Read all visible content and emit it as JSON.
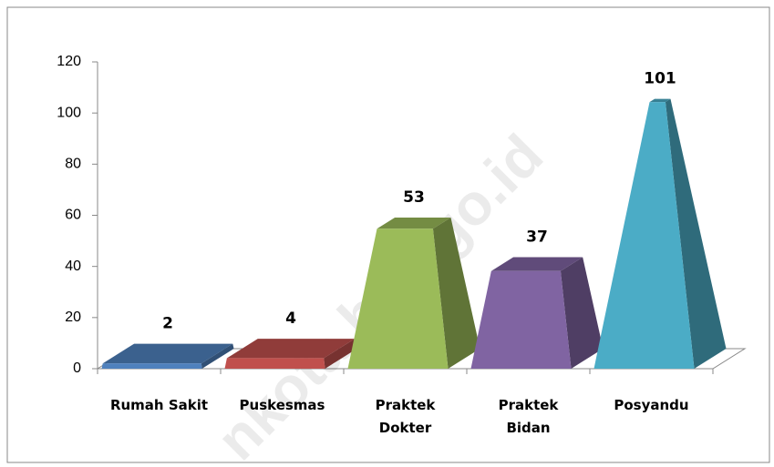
{
  "chart_data": {
    "type": "bar3d-pyramid",
    "categories": [
      "Rumah Sakit",
      "Puskesmas",
      "Praktek Dokter",
      "Praktek Bidan",
      "Posyandu"
    ],
    "values": [
      2,
      4,
      53,
      37,
      101
    ],
    "colors": [
      "#4f81bd",
      "#c0504d",
      "#9bbb59",
      "#8064a2",
      "#4bacc6"
    ],
    "ylim": [
      0,
      120
    ],
    "yticks": [
      0,
      20,
      40,
      60,
      80,
      100,
      120
    ],
    "watermark": "nkota.bps.go.id"
  }
}
